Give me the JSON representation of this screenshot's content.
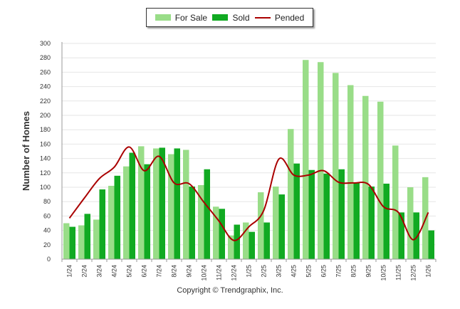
{
  "chart_data": {
    "type": "bar",
    "ylabel": "Number of Homes",
    "xlabel": "",
    "ylim": [
      0,
      300
    ],
    "yticks": [
      0,
      20,
      40,
      60,
      80,
      100,
      120,
      140,
      160,
      180,
      200,
      220,
      240,
      260,
      280,
      300
    ],
    "categories": [
      "1/24",
      "2/24",
      "3/24",
      "4/24",
      "5/24",
      "6/24",
      "7/24",
      "8/24",
      "9/24",
      "10/24",
      "11/24",
      "12/24",
      "1/25",
      "2/25",
      "3/25",
      "4/25",
      "5/25",
      "6/25",
      "7/25",
      "8/25",
      "9/25",
      "10/25",
      "11/25",
      "12/25",
      "1/26"
    ],
    "series": [
      {
        "name": "For Sale",
        "type": "bar",
        "color": "#99dd88",
        "values": [
          50,
          47,
          55,
          102,
          129,
          157,
          154,
          146,
          152,
          103,
          73,
          33,
          51,
          93,
          101,
          181,
          277,
          274,
          259,
          242,
          227,
          219,
          158,
          100,
          114
        ]
      },
      {
        "name": "Sold",
        "type": "bar",
        "color": "#11aa22",
        "values": [
          45,
          63,
          97,
          116,
          148,
          132,
          155,
          154,
          101,
          125,
          70,
          48,
          38,
          51,
          90,
          133,
          124,
          119,
          125,
          106,
          101,
          105,
          65,
          65,
          40
        ]
      },
      {
        "name": "Pended",
        "type": "line",
        "color": "#aa0000",
        "values": [
          57,
          85,
          112,
          128,
          156,
          123,
          143,
          106,
          105,
          79,
          53,
          26,
          45,
          68,
          139,
          117,
          117,
          123,
          107,
          106,
          104,
          73,
          65,
          27,
          65
        ]
      }
    ]
  },
  "footer": {
    "copyright": "Copyright © Trendgraphix, Inc."
  }
}
